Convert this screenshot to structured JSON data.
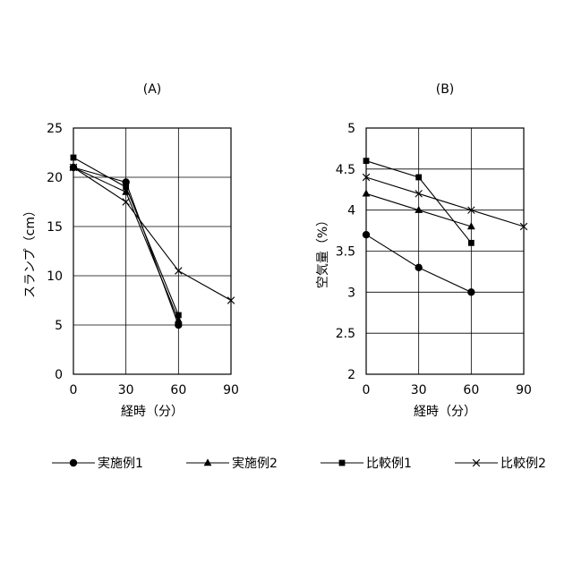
{
  "chart_data": [
    {
      "type": "line",
      "title": "(A)",
      "xlabel": "経時（分）",
      "ylabel": "スランプ（cm）",
      "xticks": [
        0,
        30,
        60,
        90
      ],
      "yticks": [
        0,
        5,
        10,
        15,
        20,
        25
      ],
      "xlim": [
        0,
        90
      ],
      "ylim": [
        0,
        25
      ],
      "grid": true,
      "series": [
        {
          "name": "実施例1",
          "marker": "circle",
          "x": [
            0,
            30,
            60
          ],
          "y": [
            21,
            19.5,
            5
          ]
        },
        {
          "name": "実施例2",
          "marker": "triangle",
          "x": [
            0,
            30,
            60
          ],
          "y": [
            21,
            18.5,
            5.5
          ]
        },
        {
          "name": "比較例1",
          "marker": "square",
          "x": [
            0,
            30,
            60
          ],
          "y": [
            22,
            19,
            6
          ]
        },
        {
          "name": "比較例2",
          "marker": "x",
          "x": [
            0,
            30,
            60,
            90
          ],
          "y": [
            21,
            17.5,
            10.5,
            7.5
          ]
        }
      ]
    },
    {
      "type": "line",
      "title": "(B)",
      "xlabel": "経時（分）",
      "ylabel": "空気量（%）",
      "xticks": [
        0,
        30,
        60,
        90
      ],
      "yticks": [
        2,
        2.5,
        3,
        3.5,
        4,
        4.5,
        5
      ],
      "xlim": [
        0,
        90
      ],
      "ylim": [
        2,
        5
      ],
      "grid": true,
      "series": [
        {
          "name": "実施例1",
          "marker": "circle",
          "x": [
            0,
            30,
            60
          ],
          "y": [
            3.7,
            3.3,
            3.0
          ]
        },
        {
          "name": "実施例2",
          "marker": "triangle",
          "x": [
            0,
            30,
            60
          ],
          "y": [
            4.2,
            4.0,
            3.8
          ]
        },
        {
          "name": "比較例1",
          "marker": "square",
          "x": [
            0,
            30,
            60
          ],
          "y": [
            4.6,
            4.4,
            3.6
          ]
        },
        {
          "name": "比較例2",
          "marker": "x",
          "x": [
            0,
            30,
            60,
            90
          ],
          "y": [
            4.4,
            4.2,
            4.0,
            3.8
          ]
        }
      ]
    }
  ],
  "legend": {
    "placement": "bottom",
    "entries": [
      {
        "label": "実施例1",
        "marker": "circle"
      },
      {
        "label": "実施例2",
        "marker": "triangle"
      },
      {
        "label": "比較例1",
        "marker": "square"
      },
      {
        "label": "比較例2",
        "marker": "x"
      }
    ]
  },
  "colors": {
    "line": "#000000",
    "grid": "#000000",
    "background": "#ffffff"
  }
}
